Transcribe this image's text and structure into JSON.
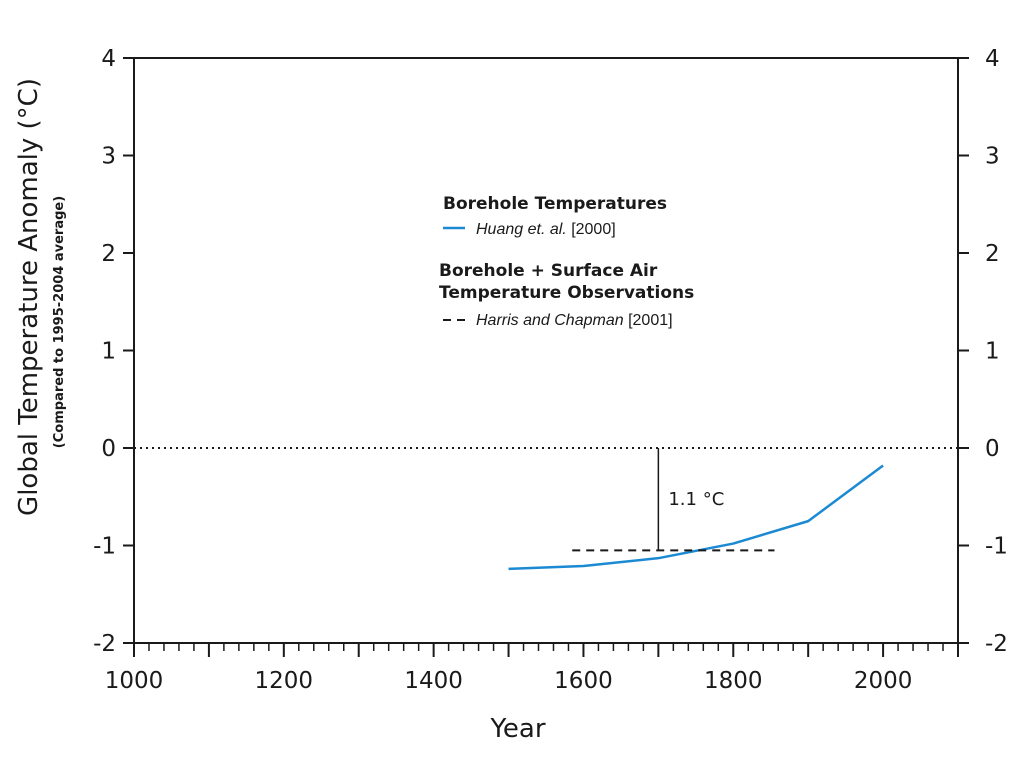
{
  "chart_data": {
    "type": "line",
    "title": "",
    "xlabel": "Year",
    "ylabel": "Global Temperature Anomaly (°C)",
    "ylabel_sub": "(Compared to 1995-2004 average)",
    "xlim": [
      1000,
      2100
    ],
    "ylim": [
      -2,
      4
    ],
    "x_ticks": [
      1000,
      1200,
      1400,
      1600,
      1800,
      2000
    ],
    "y_ticks": [
      -2,
      -1,
      0,
      1,
      2,
      3,
      4
    ],
    "y_tick_labels": [
      "-2",
      "-1",
      "0",
      "1",
      "2",
      "3",
      "4"
    ],
    "x_minor_tick_step": 20,
    "grid": false,
    "reference_line": {
      "y": 0,
      "style": "dotted"
    },
    "series": [
      {
        "name": "Huang et. al. [2000]",
        "kind": "Borehole Temperatures",
        "color": "#1b8ad3",
        "style": "solid",
        "x": [
          1500,
          1600,
          1700,
          1800,
          1900,
          2000
        ],
        "y": [
          -1.24,
          -1.21,
          -1.13,
          -0.98,
          -0.75,
          -0.18
        ]
      },
      {
        "name": "Harris and Chapman [2001]",
        "kind": "Borehole + Surface Air Temperature Observations",
        "color": "#1a1a1a",
        "style": "dashed",
        "x": [
          1585,
          1855
        ],
        "y": [
          -1.05,
          -1.05
        ]
      }
    ],
    "annotations": [
      {
        "text": "1.1 °C",
        "x": 1700,
        "y_from": -1.05,
        "y_to": 0
      }
    ],
    "legend": {
      "placement": "center",
      "groups": [
        {
          "heading": "Borehole Temperatures",
          "items": [
            {
              "author": "Huang et. al.",
              "year": "[2000]",
              "series": 0
            }
          ]
        },
        {
          "heading_line1": "Borehole + Surface Air",
          "heading_line2": "Temperature Observations",
          "items": [
            {
              "author": "Harris and Chapman",
              "year": "[2001]",
              "series": 1
            }
          ]
        }
      ]
    }
  }
}
